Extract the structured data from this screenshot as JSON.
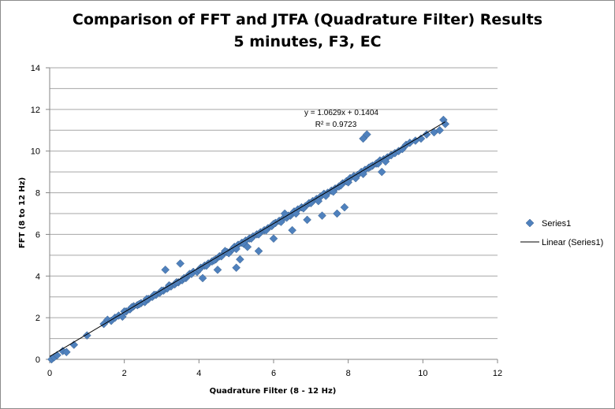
{
  "chart_data": {
    "type": "scatter",
    "title": "Comparison of FFT and JTFA (Quadrature Filter) Results",
    "subtitle": "5 minutes, F3, EC",
    "xlabel": "Quadrature Filter (8 - 12 Hz)",
    "ylabel": "FFT (8 to 12 Hz)",
    "xlim": [
      0,
      12
    ],
    "ylim": [
      0,
      14
    ],
    "x_ticks": [
      0,
      2,
      4,
      6,
      8,
      10,
      12
    ],
    "y_ticks": [
      0,
      2,
      4,
      6,
      8,
      10,
      12,
      14
    ],
    "grid": "horizontal",
    "legend": "right",
    "series": [
      {
        "name": "Series1",
        "marker": "diamond",
        "color": "#4f81bd",
        "x": [
          0.05,
          0.12,
          0.2,
          0.35,
          0.45,
          0.65,
          1.0,
          1.45,
          1.55,
          1.65,
          1.75,
          1.85,
          1.95,
          2.05,
          2.15,
          2.25,
          2.35,
          2.45,
          2.55,
          2.65,
          2.75,
          2.85,
          2.95,
          3.05,
          3.15,
          3.25,
          3.35,
          3.45,
          3.55,
          3.65,
          3.75,
          3.85,
          3.95,
          4.05,
          4.15,
          4.25,
          4.35,
          4.45,
          4.55,
          4.65,
          4.75,
          4.85,
          4.95,
          5.05,
          5.15,
          5.25,
          5.35,
          5.45,
          5.55,
          5.65,
          5.75,
          5.85,
          5.95,
          6.05,
          6.15,
          6.25,
          6.35,
          6.45,
          6.55,
          6.65,
          6.75,
          6.85,
          6.95,
          7.05,
          7.15,
          7.25,
          7.35,
          7.45,
          7.55,
          7.65,
          7.75,
          7.85,
          7.95,
          8.05,
          8.15,
          8.25,
          8.35,
          8.45,
          8.55,
          8.65,
          8.75,
          8.85,
          8.95,
          9.05,
          9.15,
          9.25,
          9.35,
          9.45,
          9.55,
          9.65,
          9.8,
          9.95,
          10.1,
          10.3,
          10.45,
          10.55,
          10.6,
          2.0,
          2.2,
          2.4,
          2.6,
          2.8,
          3.0,
          3.2,
          3.4,
          3.6,
          3.8,
          4.0,
          4.2,
          4.4,
          4.6,
          4.8,
          5.0,
          5.2,
          5.4,
          5.6,
          5.8,
          6.0,
          6.2,
          6.4,
          6.6,
          6.8,
          7.0,
          7.2,
          7.4,
          7.6,
          7.8,
          8.0,
          8.2,
          8.4,
          8.6,
          8.8,
          9.0,
          4.1,
          4.5,
          5.1,
          5.6,
          6.0,
          6.5,
          7.3,
          8.4,
          8.5,
          3.1,
          3.5,
          4.7,
          5.3,
          6.9,
          7.9,
          8.9,
          5.0,
          6.3,
          7.7
        ],
        "y": [
          0.0,
          0.1,
          0.2,
          0.4,
          0.35,
          0.7,
          1.15,
          1.7,
          1.9,
          1.85,
          2.0,
          2.1,
          2.05,
          2.3,
          2.4,
          2.55,
          2.6,
          2.7,
          2.75,
          2.9,
          3.0,
          3.1,
          3.2,
          3.3,
          3.4,
          3.5,
          3.6,
          3.7,
          3.8,
          3.9,
          4.1,
          4.2,
          4.2,
          4.4,
          4.5,
          4.6,
          4.7,
          4.8,
          4.95,
          5.05,
          5.15,
          5.2,
          5.4,
          5.5,
          5.6,
          5.7,
          5.8,
          5.9,
          6.0,
          6.1,
          6.2,
          6.3,
          6.4,
          6.55,
          6.65,
          6.75,
          6.8,
          6.9,
          7.1,
          7.2,
          7.3,
          7.35,
          7.5,
          7.6,
          7.7,
          7.8,
          7.95,
          8.0,
          8.1,
          8.2,
          8.3,
          8.45,
          8.55,
          8.7,
          8.8,
          8.85,
          9.0,
          9.1,
          9.2,
          9.3,
          9.4,
          9.55,
          9.6,
          9.7,
          9.8,
          9.9,
          10.0,
          10.1,
          10.3,
          10.4,
          10.5,
          10.6,
          10.8,
          10.9,
          11.0,
          11.5,
          11.3,
          2.3,
          2.5,
          2.65,
          2.9,
          3.1,
          3.3,
          3.55,
          3.7,
          3.9,
          4.1,
          4.3,
          4.5,
          4.75,
          4.95,
          5.1,
          5.3,
          5.55,
          5.8,
          6.0,
          6.2,
          6.5,
          6.6,
          6.9,
          7.0,
          7.25,
          7.5,
          7.6,
          7.85,
          8.05,
          8.35,
          8.5,
          8.7,
          8.9,
          9.25,
          9.4,
          9.5,
          3.9,
          4.3,
          4.8,
          5.2,
          5.8,
          6.2,
          6.9,
          10.6,
          10.8,
          4.3,
          4.6,
          5.2,
          5.4,
          6.7,
          7.3,
          9.0,
          4.4,
          7.0,
          7.0
        ]
      }
    ],
    "trendline": {
      "name": "Linear (Series1)",
      "slope": 1.0629,
      "intercept": 0.1404,
      "x_range": [
        0,
        10.6
      ],
      "color": "#000000",
      "equation": "y = 1.0629x + 0.1404",
      "r2_label": "R² = 0.9723"
    }
  }
}
